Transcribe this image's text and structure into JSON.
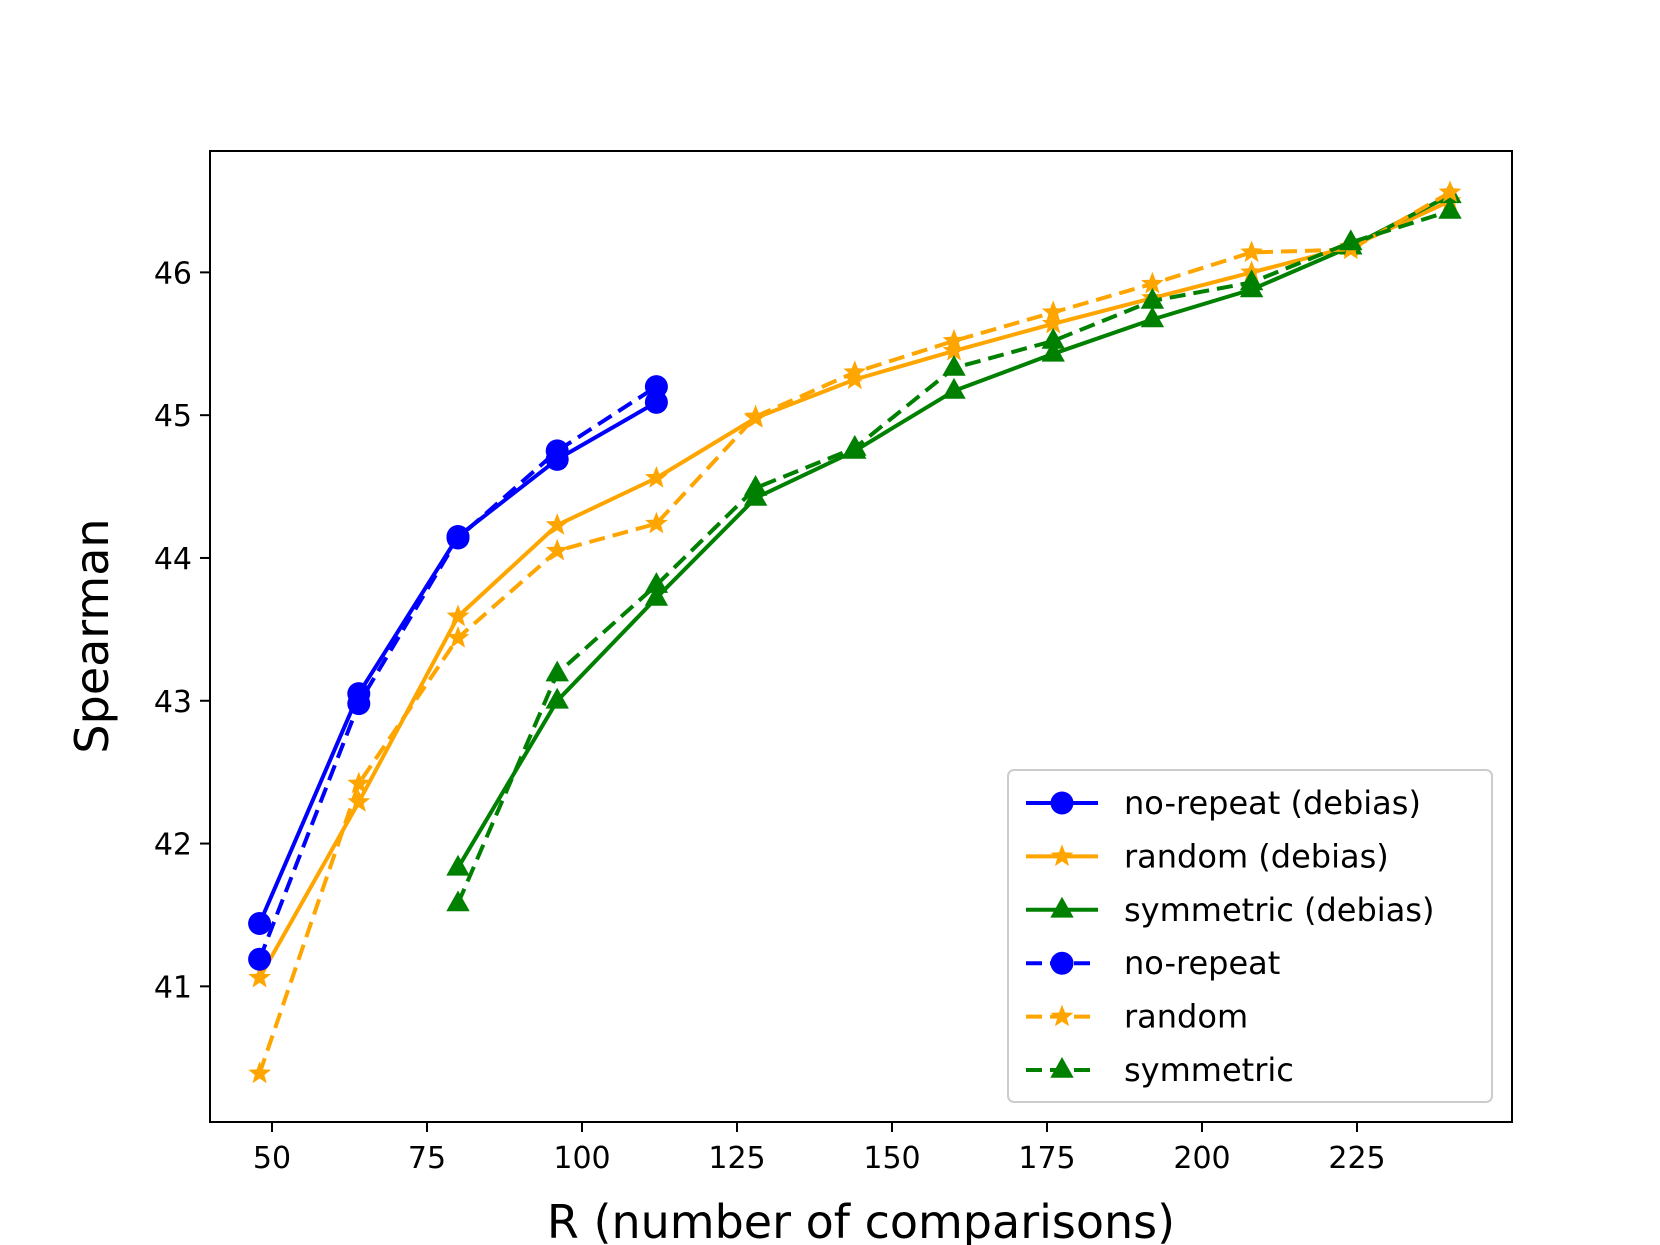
{
  "chart_data": {
    "type": "line",
    "title": "",
    "xlabel": "R (number of comparisons)",
    "ylabel": "Spearman",
    "xlim": [
      40,
      250
    ],
    "ylim": [
      40.05,
      46.85
    ],
    "xticks": [
      50,
      75,
      100,
      125,
      150,
      175,
      200,
      225
    ],
    "yticks": [
      41,
      42,
      43,
      44,
      45,
      46
    ],
    "legend_position": "lower-right",
    "series": [
      {
        "name": "no-repeat (debias)",
        "color": "#0000ff",
        "linestyle": "solid",
        "marker": "circle",
        "x": [
          48,
          64,
          80,
          96,
          112
        ],
        "y": [
          41.44,
          43.05,
          44.15,
          44.69,
          45.09
        ]
      },
      {
        "name": "random (debias)",
        "color": "#ffa500",
        "linestyle": "solid",
        "marker": "star",
        "x": [
          48,
          64,
          80,
          96,
          112,
          128,
          144,
          160,
          176,
          192,
          208,
          224,
          240
        ],
        "y": [
          41.06,
          42.29,
          43.59,
          44.23,
          44.56,
          44.98,
          45.25,
          45.45,
          45.64,
          45.82,
          46.0,
          46.18,
          46.5
        ]
      },
      {
        "name": "symmetric (debias)",
        "color": "#008000",
        "linestyle": "solid",
        "marker": "triangle",
        "x": [
          80,
          96,
          112,
          128,
          144,
          160,
          176,
          192,
          208,
          224,
          240
        ],
        "y": [
          41.83,
          43.0,
          43.72,
          44.42,
          44.75,
          45.17,
          45.43,
          45.67,
          45.88,
          46.18,
          46.54
        ]
      },
      {
        "name": "no-repeat",
        "color": "#0000ff",
        "linestyle": "dashed",
        "marker": "circle",
        "x": [
          48,
          64,
          80,
          96,
          112
        ],
        "y": [
          41.19,
          42.98,
          44.14,
          44.75,
          45.2
        ]
      },
      {
        "name": "random",
        "color": "#ffa500",
        "linestyle": "dashed",
        "marker": "star",
        "x": [
          48,
          64,
          80,
          96,
          112,
          128,
          144,
          160,
          176,
          192,
          208,
          224,
          240
        ],
        "y": [
          40.39,
          42.42,
          43.44,
          44.05,
          44.24,
          44.99,
          45.3,
          45.52,
          45.72,
          45.92,
          46.14,
          46.16,
          46.56
        ]
      },
      {
        "name": "symmetric",
        "color": "#008000",
        "linestyle": "dashed",
        "marker": "triangle",
        "x": [
          80,
          96,
          112,
          128,
          144,
          160,
          176,
          192,
          208,
          224,
          240
        ],
        "y": [
          41.58,
          43.19,
          43.81,
          44.49,
          44.77,
          45.33,
          45.52,
          45.8,
          45.93,
          46.21,
          46.43
        ]
      }
    ]
  }
}
